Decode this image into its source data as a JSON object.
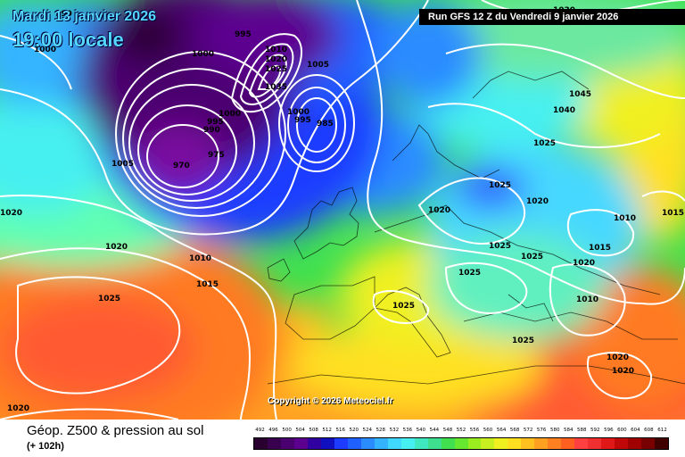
{
  "header": {
    "date": "Mardi 13 janvier 2026",
    "time": "19:00 locale",
    "run": "Run GFS 12 Z du Vendredi 9 janvier 2026"
  },
  "copyright": "Copyright © 2026 Meteociel.fr",
  "footer": {
    "title": "Géop. Z500 & pression au sol",
    "subtitle": "(+ 102h)"
  },
  "scale": {
    "labels": [
      "492",
      "496",
      "500",
      "504",
      "508",
      "512",
      "516",
      "520",
      "524",
      "528",
      "532",
      "536",
      "540",
      "544",
      "548",
      "552",
      "556",
      "560",
      "564",
      "568",
      "572",
      "576",
      "580",
      "584",
      "588",
      "592",
      "596",
      "600",
      "604",
      "608",
      "612"
    ],
    "colors": [
      "#2a0030",
      "#3a0050",
      "#4b0070",
      "#5c0090",
      "#3000a0",
      "#1010c0",
      "#1e3cff",
      "#2060ff",
      "#2a8cff",
      "#34b4ff",
      "#40d8ff",
      "#46f0f0",
      "#40e8c0",
      "#3ee090",
      "#40e050",
      "#66e830",
      "#9aee20",
      "#c8f020",
      "#f0f020",
      "#ffe020",
      "#ffc020",
      "#ffa020",
      "#ff8020",
      "#ff6020",
      "#ff4040",
      "#f03030",
      "#e01818",
      "#c00808",
      "#a00000",
      "#780000",
      "#400000"
    ]
  },
  "isobars": [
    "990",
    "995",
    "1000",
    "1005",
    "1010",
    "1015",
    "1020",
    "1025",
    "1030",
    "1035",
    "1040",
    "1045",
    "970",
    "975",
    "985"
  ]
}
